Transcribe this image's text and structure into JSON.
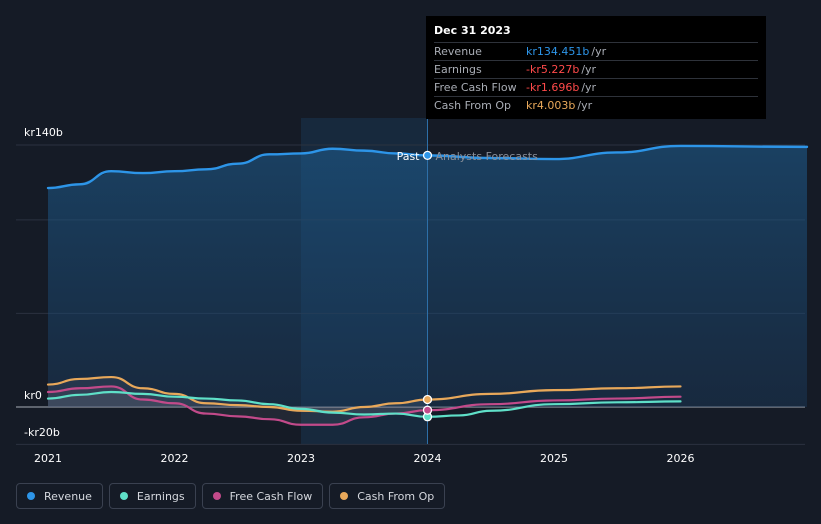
{
  "chart_data": {
    "type": "line",
    "title": "",
    "xlabel": "",
    "ylabel": "",
    "ylim": [
      -20,
      140
    ],
    "y_tick_labels": [
      "kr140b",
      "kr0",
      "-kr20b"
    ],
    "x_tick_labels": [
      "2021",
      "2022",
      "2023",
      "2024",
      "2025",
      "2026"
    ],
    "past_label": "Past",
    "forecast_label": "Analysts Forecasts",
    "divider_x": 2024.0,
    "highlight_start": 2023.0,
    "series": [
      {
        "name": "Revenue",
        "color": "#2d95e8",
        "points": [
          [
            2021.0,
            117
          ],
          [
            2021.25,
            119
          ],
          [
            2021.5,
            126
          ],
          [
            2021.75,
            125
          ],
          [
            2022.0,
            126
          ],
          [
            2022.25,
            127
          ],
          [
            2022.5,
            130
          ],
          [
            2022.75,
            135
          ],
          [
            2023.0,
            135.5
          ],
          [
            2023.25,
            138
          ],
          [
            2023.5,
            137
          ],
          [
            2023.75,
            135.5
          ],
          [
            2024.0,
            134.451
          ],
          [
            2024.5,
            133
          ],
          [
            2025.0,
            132.5
          ],
          [
            2025.5,
            136
          ],
          [
            2026.0,
            139.5
          ],
          [
            2027.0,
            139
          ]
        ]
      },
      {
        "name": "Earnings",
        "color": "#5fe0c8",
        "points": [
          [
            2021.0,
            4.5
          ],
          [
            2021.25,
            6.5
          ],
          [
            2021.5,
            8
          ],
          [
            2021.75,
            7
          ],
          [
            2022.0,
            5.5
          ],
          [
            2022.25,
            4.5
          ],
          [
            2022.5,
            3.5
          ],
          [
            2022.75,
            1.5
          ],
          [
            2023.0,
            -1
          ],
          [
            2023.25,
            -3
          ],
          [
            2023.5,
            -4
          ],
          [
            2023.75,
            -3.5
          ],
          [
            2024.0,
            -5.227
          ],
          [
            2024.25,
            -4.5
          ],
          [
            2024.5,
            -2
          ],
          [
            2025.0,
            1.5
          ],
          [
            2025.5,
            2.5
          ],
          [
            2026.0,
            3
          ]
        ]
      },
      {
        "name": "Free Cash Flow",
        "color": "#c24a8a",
        "points": [
          [
            2021.0,
            8
          ],
          [
            2021.25,
            10
          ],
          [
            2021.5,
            11
          ],
          [
            2021.75,
            4
          ],
          [
            2022.0,
            2
          ],
          [
            2022.25,
            -3.5
          ],
          [
            2022.5,
            -5
          ],
          [
            2022.75,
            -6.5
          ],
          [
            2023.0,
            -9.5
          ],
          [
            2023.25,
            -9.5
          ],
          [
            2023.5,
            -5.5
          ],
          [
            2023.75,
            -3.5
          ],
          [
            2024.0,
            -1.696
          ],
          [
            2024.5,
            1.5
          ],
          [
            2025.0,
            3.5
          ],
          [
            2025.5,
            4.5
          ],
          [
            2026.0,
            5.5
          ]
        ]
      },
      {
        "name": "Cash From Op",
        "color": "#e8a85a",
        "points": [
          [
            2021.0,
            12
          ],
          [
            2021.25,
            15
          ],
          [
            2021.5,
            16
          ],
          [
            2021.75,
            10
          ],
          [
            2022.0,
            7
          ],
          [
            2022.25,
            2
          ],
          [
            2022.5,
            1
          ],
          [
            2022.75,
            0
          ],
          [
            2023.0,
            -2
          ],
          [
            2023.25,
            -2.5
          ],
          [
            2023.5,
            0
          ],
          [
            2023.75,
            2
          ],
          [
            2024.0,
            4.003
          ],
          [
            2024.5,
            7
          ],
          [
            2025.0,
            9
          ],
          [
            2025.5,
            10
          ],
          [
            2026.0,
            11
          ]
        ]
      }
    ]
  },
  "tooltip": {
    "date": "Dec 31 2023",
    "rows": [
      {
        "label": "Revenue",
        "value": "kr134.451b",
        "unit": "/yr",
        "color": "#2d95e8"
      },
      {
        "label": "Earnings",
        "value": "-kr5.227b",
        "unit": "/yr",
        "color": "#ff4a4a"
      },
      {
        "label": "Free Cash Flow",
        "value": "-kr1.696b",
        "unit": "/yr",
        "color": "#ff4a4a"
      },
      {
        "label": "Cash From Op",
        "value": "kr4.003b",
        "unit": "/yr",
        "color": "#e8a85a"
      }
    ]
  },
  "legend": [
    {
      "label": "Revenue",
      "color": "#2d95e8"
    },
    {
      "label": "Earnings",
      "color": "#5fe0c8"
    },
    {
      "label": "Free Cash Flow",
      "color": "#c24a8a"
    },
    {
      "label": "Cash From Op",
      "color": "#e8a85a"
    }
  ]
}
